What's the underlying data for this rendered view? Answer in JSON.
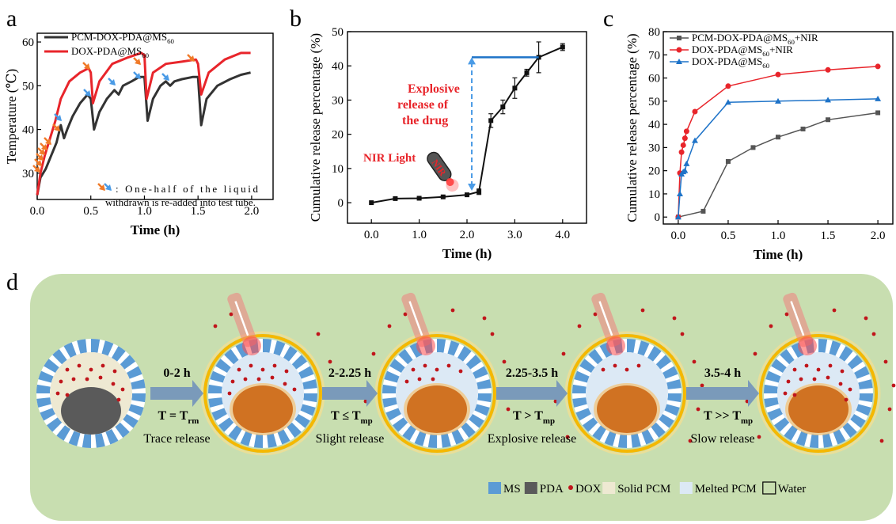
{
  "panel_labels": {
    "a": "a",
    "b": "b",
    "c": "c",
    "d": "d"
  },
  "colors": {
    "black": "#333333",
    "red": "#e8252b",
    "blue": "#1e73c8",
    "orange_arrow": "#f07a28",
    "blue_arrow": "#4a9be6",
    "green_bg": "#c8deb0",
    "ms_blue": "#5b9bd5",
    "pda": "#5a5a5a",
    "dox": "#c0151b",
    "solid_pcm": "#eee9d2",
    "melted_pcm": "#dce9f5",
    "core": "#d07222",
    "glow": "#f5b800"
  },
  "chart_data": [
    {
      "panel": "a",
      "type": "line",
      "xlabel": "Time (h)",
      "ylabel": "Temperature (℃)",
      "xlim": [
        0,
        2.2
      ],
      "ylim": [
        24,
        62
      ],
      "xticks": [
        "0.0",
        "0.5",
        "1.0",
        "1.5",
        "2.0"
      ],
      "yticks": [
        "30",
        "40",
        "50",
        "60"
      ],
      "legend_position": "top-left",
      "annotation": "One-half of the liquid withdrawn is re-added into test tube.",
      "series": [
        {
          "name": "PCM-DOX-PDA@MS60",
          "name_main": "PCM-DOX-PDA@MS",
          "name_sub": "60",
          "color": "#333333",
          "x": [
            0,
            0.03,
            0.08,
            0.13,
            0.18,
            0.22,
            0.25,
            0.28,
            0.33,
            0.4,
            0.47,
            0.5,
            0.53,
            0.58,
            0.65,
            0.72,
            0.76,
            0.8,
            0.88,
            0.95,
            1.0,
            1.03,
            1.08,
            1.15,
            1.2,
            1.24,
            1.28,
            1.35,
            1.45,
            1.5,
            1.53,
            1.58,
            1.68,
            1.8,
            1.9,
            1.99
          ],
          "y": [
            25,
            29,
            31,
            34,
            37,
            41,
            38,
            40,
            43,
            46,
            48,
            47,
            40,
            44,
            47,
            49,
            48,
            50,
            51,
            52,
            52,
            42,
            47,
            50,
            51,
            50,
            51,
            51.5,
            52,
            52,
            41,
            47,
            50,
            51.5,
            52.5,
            53
          ]
        },
        {
          "name": "DOX-PDA@MS60",
          "name_main": "DOX-PDA@MS",
          "name_sub": "60",
          "color": "#e8252b",
          "x": [
            0,
            0.03,
            0.07,
            0.12,
            0.17,
            0.22,
            0.3,
            0.4,
            0.48,
            0.5,
            0.52,
            0.58,
            0.7,
            0.85,
            0.97,
            1.0,
            1.02,
            1.08,
            1.2,
            1.35,
            1.48,
            1.5,
            1.53,
            1.6,
            1.75,
            1.9,
            1.99
          ],
          "y": [
            25,
            30,
            34,
            38,
            42,
            47,
            51,
            53,
            54,
            53,
            46,
            51,
            55,
            56.5,
            57.5,
            57,
            47,
            53,
            55,
            55.5,
            56,
            55,
            48,
            53,
            56,
            57.5,
            57.5
          ]
        }
      ]
    },
    {
      "panel": "b",
      "type": "line",
      "xlabel": "Time (h)",
      "ylabel": "Cumulative release percentage (%)",
      "xlim": [
        -0.5,
        4.5
      ],
      "ylim": [
        -6,
        50
      ],
      "xticks": [
        "0.0",
        "1.0",
        "2.0",
        "3.0",
        "4.0"
      ],
      "yticks": [
        "0",
        "10",
        "20",
        "30",
        "40",
        "50"
      ],
      "annotations": [
        "Explosive release of the drug",
        "NIR Light",
        "NIR"
      ],
      "series": [
        {
          "name": "",
          "color": "#111111",
          "x": [
            0,
            0.5,
            1,
            1.5,
            2,
            2.25,
            2.5,
            2.75,
            3,
            3.25,
            3.5,
            4
          ],
          "y": [
            0,
            1.2,
            1.3,
            1.7,
            2.3,
            3.2,
            24,
            28,
            33.5,
            38,
            42.5,
            45.5
          ],
          "err": [
            0,
            0.2,
            0.2,
            0.2,
            0.3,
            0.8,
            2,
            2,
            3,
            1,
            4.5,
            1
          ]
        }
      ]
    },
    {
      "panel": "c",
      "type": "line",
      "xlabel": "Time (h)",
      "ylabel": "Cumulative release percentage (%)",
      "xlim": [
        -0.15,
        2.15
      ],
      "ylim": [
        -3,
        80
      ],
      "xticks": [
        "0.0",
        "0.5",
        "1.0",
        "1.5",
        "2.0"
      ],
      "yticks": [
        "0",
        "10",
        "20",
        "30",
        "40",
        "50",
        "60",
        "70",
        "80"
      ],
      "legend_position": "top-left",
      "series": [
        {
          "name": "PCM-DOX-PDA@MS60+NIR",
          "name_main": "PCM-DOX-PDA@MS",
          "name_sub": "60",
          "name_tail": "+NIR",
          "color": "#555555",
          "marker": "square",
          "x": [
            0,
            0.25,
            0.5,
            0.75,
            1,
            1.25,
            1.5,
            2
          ],
          "y": [
            0,
            2.5,
            24,
            30,
            34.5,
            38,
            42,
            45
          ]
        },
        {
          "name": "DOX-PDA@MS60+NIR",
          "name_main": "DOX-PDA@MS",
          "name_sub": "60",
          "name_tail": "+NIR",
          "color": "#e8252b",
          "marker": "circle",
          "x": [
            0,
            0.0167,
            0.033,
            0.05,
            0.067,
            0.083,
            0.167,
            0.5,
            1,
            1.5,
            2
          ],
          "y": [
            0,
            19,
            28,
            31,
            34,
            37,
            45.5,
            56.5,
            61.5,
            63.5,
            65
          ]
        },
        {
          "name": "DOX-PDA@MS60",
          "name_main": "DOX-PDA@MS",
          "name_sub": "60",
          "name_tail": "",
          "color": "#1e73c8",
          "marker": "triangle",
          "x": [
            0,
            0.0167,
            0.033,
            0.05,
            0.067,
            0.083,
            0.167,
            0.5,
            1,
            1.5,
            2
          ],
          "y": [
            0,
            10,
            18.5,
            19.5,
            20,
            23,
            33,
            49.5,
            50,
            50.5,
            51
          ]
        }
      ]
    }
  ],
  "diagram": {
    "stages": [
      {
        "time": "0-2 h",
        "temp_main": "T = T",
        "temp_sub": "rm",
        "caption": "Trace release"
      },
      {
        "time": "2-2.25 h",
        "temp_main": "T ≤ T",
        "temp_sub": "mp",
        "caption": "Slight release"
      },
      {
        "time": "2.25-3.5 h",
        "temp_main": "T > T",
        "temp_sub": "mp",
        "caption": "Explosive release"
      },
      {
        "time": "3.5-4 h",
        "temp_main": "T >> T",
        "temp_sub": "mp",
        "caption": "Slow release"
      }
    ],
    "legend": [
      {
        "label": "MS",
        "kind": "ms"
      },
      {
        "label": "PDA",
        "kind": "pda"
      },
      {
        "label": "DOX",
        "kind": "dox"
      },
      {
        "label": "Solid PCM",
        "kind": "solid"
      },
      {
        "label": "Melted PCM",
        "kind": "melted"
      },
      {
        "label": "Water",
        "kind": "water"
      }
    ]
  }
}
